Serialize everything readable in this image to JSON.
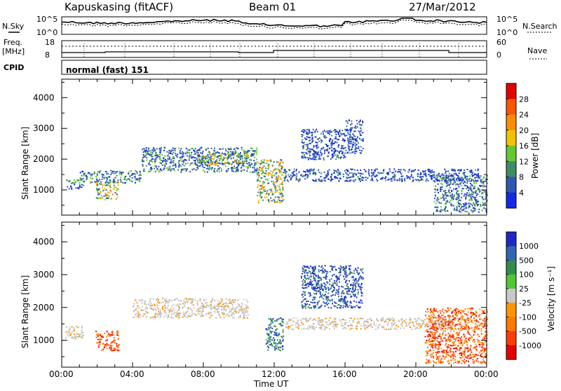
{
  "header": {
    "station": "Kapuskasing (fitACF)",
    "beam": "Beam 01",
    "date": "27/Mar/2012"
  },
  "top_panels": {
    "nsky_label": "N.Sky",
    "nsky_ticks": [
      "10^5",
      "10^0"
    ],
    "nsearch_label": "N.Search",
    "nsearch_ticks": [
      "10^5",
      "10^0"
    ],
    "freq_label_line1": "Freq.",
    "freq_label_line2": "[MHz]",
    "freq_ticks": [
      "18",
      "8"
    ],
    "nave_label": "Nave",
    "nave_ticks": [
      "60",
      "0"
    ],
    "cpid_label": "CPID",
    "cpid_value": "normal (fast) 151"
  },
  "chart_data": [
    {
      "type": "heatmap",
      "name": "power-panel",
      "ylabel": "Slant Range [km]",
      "xlabel": "",
      "ylim": [
        180,
        4600
      ],
      "xlim": [
        0,
        24
      ],
      "yticks": [
        1000,
        2000,
        3000,
        4000
      ],
      "colorbar": {
        "label": "Power [dB]",
        "ticks": [
          "28",
          "24",
          "20",
          "16",
          "12",
          "8",
          "4"
        ],
        "colors": [
          "#e60000",
          "#ff5500",
          "#ff8c00",
          "#f2c200",
          "#64c832",
          "#3c8c64",
          "#3256b4",
          "#1428e6"
        ]
      },
      "echo_bands": [
        {
          "x": [
            0.2,
            1.2
          ],
          "y": [
            1050,
            1350
          ],
          "level": "mid"
        },
        {
          "x": [
            1.0,
            4.5
          ],
          "y": [
            1250,
            1650
          ],
          "level": "mid"
        },
        {
          "x": [
            1.9,
            3.2
          ],
          "y": [
            700,
            1300
          ],
          "level": "high"
        },
        {
          "x": [
            4.5,
            11.0
          ],
          "y": [
            1600,
            2400
          ],
          "level": "mid"
        },
        {
          "x": [
            7.5,
            10.5
          ],
          "y": [
            1850,
            2200
          ],
          "level": "high"
        },
        {
          "x": [
            11.0,
            12.5
          ],
          "y": [
            600,
            2000
          ],
          "level": "high"
        },
        {
          "x": [
            12.5,
            23.5
          ],
          "y": [
            1300,
            1700
          ],
          "level": "low"
        },
        {
          "x": [
            13.5,
            16.0
          ],
          "y": [
            2000,
            3000
          ],
          "level": "low"
        },
        {
          "x": [
            16.0,
            17.0
          ],
          "y": [
            2200,
            3300
          ],
          "level": "low"
        },
        {
          "x": [
            21.0,
            24.0
          ],
          "y": [
            300,
            1500
          ],
          "level": "mid"
        }
      ]
    },
    {
      "type": "heatmap",
      "name": "velocity-panel",
      "ylabel": "Slant Range [km]",
      "xlabel": "Time UT",
      "ylim": [
        180,
        4600
      ],
      "xlim": [
        0,
        24
      ],
      "yticks": [
        1000,
        2000,
        3000,
        4000
      ],
      "xticks": [
        "00:00",
        "04:00",
        "08:00",
        "12:00",
        "16:00",
        "20:00",
        "00:00"
      ],
      "colorbar": {
        "label": "Velocity [m s⁻¹]",
        "ticks": [
          "1000",
          "500",
          "100",
          "25",
          "-25",
          "-100",
          "-500",
          "-1000"
        ],
        "colors": [
          "#1e28c8",
          "#3264b4",
          "#328c50",
          "#50c832",
          "#c8c8c8",
          "#ff9600",
          "#ff7800",
          "#ff3c00",
          "#e60000"
        ]
      },
      "echo_bands": [
        {
          "x": [
            0.2,
            1.2
          ],
          "y": [
            1050,
            1450
          ],
          "level": "ground"
        },
        {
          "x": [
            1.9,
            3.2
          ],
          "y": [
            700,
            1300
          ],
          "level": "away"
        },
        {
          "x": [
            4.0,
            10.5
          ],
          "y": [
            1700,
            2300
          ],
          "level": "ground"
        },
        {
          "x": [
            11.5,
            12.5
          ],
          "y": [
            700,
            1700
          ],
          "level": "toward"
        },
        {
          "x": [
            13.5,
            17.0
          ],
          "y": [
            2000,
            3300
          ],
          "level": "toward_fast"
        },
        {
          "x": [
            12.5,
            23.0
          ],
          "y": [
            1350,
            1700
          ],
          "level": "ground"
        },
        {
          "x": [
            20.5,
            24.0
          ],
          "y": [
            300,
            2000
          ],
          "level": "away"
        }
      ]
    }
  ]
}
